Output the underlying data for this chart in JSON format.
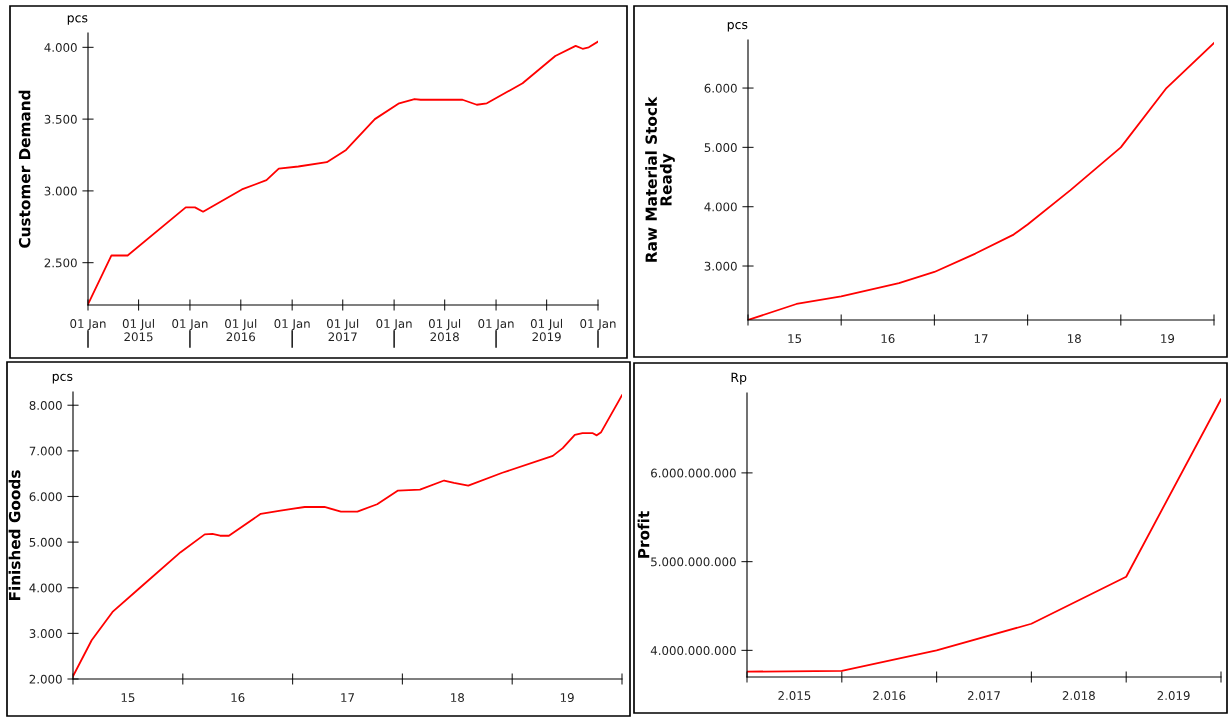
{
  "chart_data": [
    {
      "type": "line",
      "ylabel": "Customer Demand",
      "annotations": [
        "pcs"
      ],
      "x": [
        "2015-01-01",
        "2015-03-26",
        "2015-05-23",
        "2015-12-17",
        "2016-01-19",
        "2016-02-17",
        "2016-07-05",
        "2016-10-01",
        "2016-11-14",
        "2017-01-23",
        "2017-05-05",
        "2017-07-13",
        "2017-10-24",
        "2018-01-19",
        "2018-03-15",
        "2018-04-06",
        "2018-09-03",
        "2018-10-24",
        "2018-11-29",
        "2019-04-06",
        "2019-08-01",
        "2019-10-13",
        "2019-11-07",
        "2019-11-29",
        "2020-01-01"
      ],
      "series": [
        {
          "color": "#ff0000",
          "values": [
            2210,
            2550,
            2550,
            2885,
            2885,
            2855,
            3010,
            3075,
            3155,
            3170,
            3200,
            3285,
            3500,
            3610,
            3640,
            3635,
            3635,
            3600,
            3610,
            3750,
            3940,
            4010,
            3990,
            4000,
            4040
          ]
        }
      ],
      "xlim": [
        "2015-01-01",
        "2020-01-01"
      ],
      "ylim": [
        2205,
        4100
      ],
      "xticks": [
        {
          "value": "2015-01-01",
          "label": "01 Jan"
        },
        {
          "value": "2015-07-01",
          "label": "01 Jul\n2015"
        },
        {
          "value": "2016-01-01",
          "label": "01 Jan"
        },
        {
          "value": "2016-07-01",
          "label": "01 Jul\n2016"
        },
        {
          "value": "2017-01-01",
          "label": "01 Jan"
        },
        {
          "value": "2017-07-01",
          "label": "01 Jul\n2017"
        },
        {
          "value": "2018-01-01",
          "label": "01 Jan"
        },
        {
          "value": "2018-07-01",
          "label": "01 Jul\n2018"
        },
        {
          "value": "2019-01-01",
          "label": "01 Jan"
        },
        {
          "value": "2019-07-01",
          "label": "01 Jul\n2019"
        },
        {
          "value": "2020-01-01",
          "label": "01 Jan"
        }
      ],
      "yticks": [
        {
          "value": 2500,
          "label": "2.500"
        },
        {
          "value": 3000,
          "label": "3.000"
        },
        {
          "value": 3500,
          "label": "3.500"
        },
        {
          "value": 4000,
          "label": "4.000"
        }
      ],
      "grid": false,
      "legend": false,
      "marker": "none",
      "line_style": "solid"
    },
    {
      "type": "line",
      "ylabel": "Raw Material Stock\nReady",
      "annotations": [
        "pcs"
      ],
      "x": [
        14.5,
        15.02,
        15.5,
        16.12,
        16.5,
        16.94,
        17.35,
        17.5,
        17.96,
        18.5,
        18.99,
        19.5
      ],
      "series": [
        {
          "color": "#ff0000",
          "values": [
            2090,
            2360,
            2490,
            2710,
            2900,
            3210,
            3530,
            3700,
            4280,
            5000,
            6000,
            6760
          ]
        }
      ],
      "xlim": [
        14.5,
        19.5
      ],
      "ylim": [
        2090,
        6810
      ],
      "xticks": [
        {
          "value": 14.5,
          "label": null
        },
        15,
        {
          "value": 15.5,
          "label": null
        },
        16,
        {
          "value": 16.5,
          "label": null
        },
        17,
        {
          "value": 17.5,
          "label": null
        },
        18,
        {
          "value": 18.5,
          "label": null
        },
        19,
        {
          "value": 19.5,
          "label": null
        }
      ],
      "yticks": [
        {
          "value": 3000,
          "label": "3.000"
        },
        {
          "value": 4000,
          "label": "4.000"
        },
        {
          "value": 5000,
          "label": "5.000"
        },
        {
          "value": 6000,
          "label": "6.000"
        }
      ],
      "grid": false,
      "legend": false,
      "marker": "none",
      "line_style": "solid"
    },
    {
      "type": "line",
      "ylabel": "Finished Goods",
      "annotations": [
        "pcs"
      ],
      "x": [
        14.5,
        14.67,
        14.86,
        15.11,
        15.48,
        15.7,
        15.77,
        15.84,
        15.92,
        16.21,
        16.39,
        16.61,
        16.79,
        16.94,
        17.09,
        17.27,
        17.46,
        17.66,
        17.88,
        17.97,
        18.1,
        18.41,
        18.87,
        18.96,
        19.07,
        19.14,
        19.23,
        19.27,
        19.31,
        19.5
      ],
      "series": [
        {
          "color": "#ff0000",
          "values": [
            2060,
            2850,
            3470,
            4000,
            4780,
            5170,
            5180,
            5140,
            5140,
            5620,
            5690,
            5770,
            5770,
            5670,
            5670,
            5830,
            6130,
            6150,
            6350,
            6300,
            6240,
            6520,
            6890,
            7060,
            7350,
            7390,
            7390,
            7340,
            7410,
            8220
          ]
        }
      ],
      "xlim": [
        14.5,
        19.5
      ],
      "ylim": [
        2000,
        8290
      ],
      "xticks": [
        {
          "value": 14.5,
          "label": null
        },
        15,
        {
          "value": 15.5,
          "label": null
        },
        16,
        {
          "value": 16.5,
          "label": null
        },
        17,
        {
          "value": 17.5,
          "label": null
        },
        18,
        {
          "value": 18.5,
          "label": null
        },
        19,
        {
          "value": 19.5,
          "label": null
        }
      ],
      "yticks": [
        {
          "value": 2000,
          "label": "2.000"
        },
        {
          "value": 3000,
          "label": "3.000"
        },
        {
          "value": 4000,
          "label": "4.000"
        },
        {
          "value": 5000,
          "label": "5.000"
        },
        {
          "value": 6000,
          "label": "6.000"
        },
        {
          "value": 7000,
          "label": "7.000"
        },
        {
          "value": 8000,
          "label": "8.000"
        }
      ],
      "grid": false,
      "legend": false,
      "marker": "none",
      "line_style": "solid"
    },
    {
      "type": "line",
      "ylabel": "Profit",
      "annotations": [
        "Rp"
      ],
      "x": [
        2014.5,
        2015.5,
        2016.5,
        2017.5,
        2018.5,
        2019.5
      ],
      "series": [
        {
          "color": "#ff0000",
          "values": [
            3760000000,
            3770000000,
            4000000000,
            4300000000,
            4830000000,
            6830000000
          ]
        }
      ],
      "xlim": [
        2014.5,
        2019.5
      ],
      "ylim": [
        3700000000,
        6900000000
      ],
      "xticks": [
        {
          "value": 2014.5,
          "label": null
        },
        {
          "value": 2015,
          "label": "2.015"
        },
        {
          "value": 2015.5,
          "label": null
        },
        {
          "value": 2016,
          "label": "2.016"
        },
        {
          "value": 2016.5,
          "label": null
        },
        {
          "value": 2017,
          "label": "2.017"
        },
        {
          "value": 2017.5,
          "label": null
        },
        {
          "value": 2018,
          "label": "2.018"
        },
        {
          "value": 2018.5,
          "label": null
        },
        {
          "value": 2019,
          "label": "2.019"
        },
        {
          "value": 2019.5,
          "label": null
        }
      ],
      "yticks": [
        {
          "value": 4000000000,
          "label": "4.000.000.000"
        },
        {
          "value": 5000000000,
          "label": "5.000.000.000"
        },
        {
          "value": 6000000000,
          "label": "6.000.000.000"
        }
      ],
      "grid": false,
      "legend": false,
      "marker": "none",
      "line_style": "solid"
    }
  ]
}
